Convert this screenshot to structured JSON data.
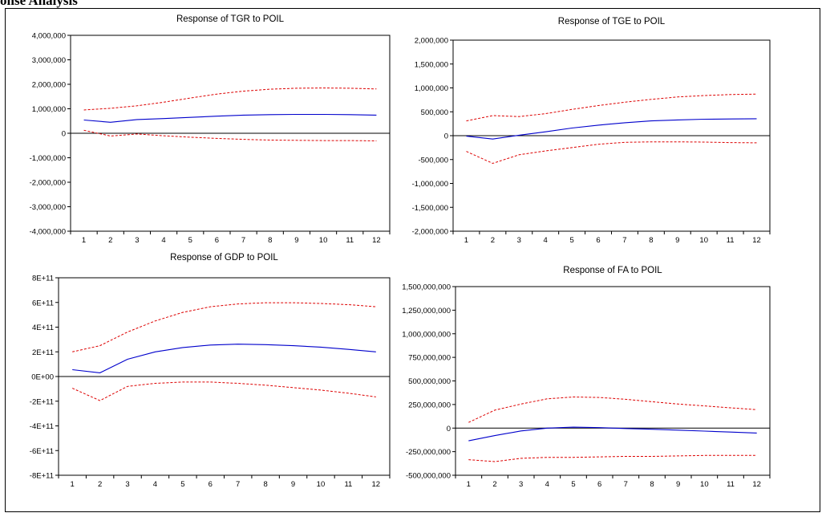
{
  "page": {
    "heading": "onse Analysis"
  },
  "colors": {
    "impulse": "#0000cc",
    "bands": "#dd0000",
    "axis": "#000000",
    "zero": "#000000"
  },
  "chart_data": [
    {
      "type": "line",
      "title": "Response of TGR to POIL",
      "x": [
        1,
        2,
        3,
        4,
        5,
        6,
        7,
        8,
        9,
        10,
        11,
        12
      ],
      "ylim": [
        -4000000,
        4000000
      ],
      "yticks": [
        -4000000,
        -3000000,
        -2000000,
        -1000000,
        0,
        1000000,
        2000000,
        3000000,
        4000000
      ],
      "ytick_labels": [
        "-4,000,000",
        "-3,000,000",
        "-2,000,000",
        "-1,000,000",
        "0",
        "1,000,000",
        "2,000,000",
        "3,000,000",
        "4,000,000"
      ],
      "xtick_labels": [
        "1",
        "2",
        "3",
        "4",
        "5",
        "6",
        "7",
        "8",
        "9",
        "10",
        "11",
        "12"
      ],
      "series": [
        {
          "role": "impulse",
          "values": [
            540000,
            450000,
            560000,
            600000,
            650000,
            700000,
            740000,
            760000,
            770000,
            770000,
            760000,
            740000
          ]
        },
        {
          "role": "upper",
          "values": [
            950000,
            1020000,
            1120000,
            1270000,
            1440000,
            1600000,
            1720000,
            1800000,
            1840000,
            1850000,
            1840000,
            1810000
          ]
        },
        {
          "role": "lower",
          "values": [
            120000,
            -110000,
            -30000,
            -100000,
            -160000,
            -210000,
            -250000,
            -280000,
            -290000,
            -300000,
            -300000,
            -310000
          ]
        }
      ]
    },
    {
      "type": "line",
      "title": "Response of TGE to POIL",
      "x": [
        1,
        2,
        3,
        4,
        5,
        6,
        7,
        8,
        9,
        10,
        11,
        12
      ],
      "ylim": [
        -2000000,
        2000000
      ],
      "yticks": [
        -2000000,
        -1500000,
        -1000000,
        -500000,
        0,
        500000,
        1000000,
        1500000,
        2000000
      ],
      "ytick_labels": [
        "-2,000,000",
        "-1,500,000",
        "-1,000,000",
        "-500,000",
        "0",
        "500,000",
        "1,000,000",
        "1,500,000",
        "2,000,000"
      ],
      "xtick_labels": [
        "1",
        "2",
        "3",
        "4",
        "5",
        "6",
        "7",
        "8",
        "9",
        "10",
        "11",
        "12"
      ],
      "series": [
        {
          "role": "impulse",
          "values": [
            -10000,
            -70000,
            10000,
            80000,
            160000,
            220000,
            270000,
            310000,
            330000,
            345000,
            350000,
            355000
          ]
        },
        {
          "role": "upper",
          "values": [
            310000,
            420000,
            400000,
            460000,
            550000,
            630000,
            700000,
            760000,
            810000,
            840000,
            860000,
            870000
          ]
        },
        {
          "role": "lower",
          "values": [
            -330000,
            -580000,
            -400000,
            -320000,
            -250000,
            -180000,
            -140000,
            -130000,
            -130000,
            -135000,
            -145000,
            -150000
          ]
        }
      ]
    },
    {
      "type": "line",
      "title": "Response of GDP to POIL",
      "x": [
        1,
        2,
        3,
        4,
        5,
        6,
        7,
        8,
        9,
        10,
        11,
        12
      ],
      "ylim": [
        -800000000000,
        800000000000
      ],
      "yticks": [
        -800000000000,
        -600000000000,
        -400000000000,
        -200000000000,
        0,
        200000000000,
        400000000000,
        600000000000,
        800000000000
      ],
      "ytick_labels": [
        "-8E+11",
        "-6E+11",
        "-4E+11",
        "-2E+11",
        "0E+00",
        "2E+11",
        "4E+11",
        "6E+11",
        "8E+11"
      ],
      "xtick_labels": [
        "1",
        "2",
        "3",
        "4",
        "5",
        "6",
        "7",
        "8",
        "9",
        "10",
        "11",
        "12"
      ],
      "series": [
        {
          "role": "impulse",
          "values": [
            55000000000,
            30000000000,
            140000000000,
            200000000000,
            235000000000,
            255000000000,
            262000000000,
            258000000000,
            250000000000,
            238000000000,
            220000000000,
            200000000000
          ]
        },
        {
          "role": "upper",
          "values": [
            200000000000,
            250000000000,
            360000000000,
            450000000000,
            520000000000,
            565000000000,
            588000000000,
            598000000000,
            598000000000,
            592000000000,
            582000000000,
            565000000000
          ]
        },
        {
          "role": "lower",
          "values": [
            -95000000000,
            -195000000000,
            -80000000000,
            -55000000000,
            -45000000000,
            -45000000000,
            -55000000000,
            -70000000000,
            -90000000000,
            -110000000000,
            -135000000000,
            -165000000000
          ]
        }
      ]
    },
    {
      "type": "line",
      "title": "Response of FA to POIL",
      "x": [
        1,
        2,
        3,
        4,
        5,
        6,
        7,
        8,
        9,
        10,
        11,
        12
      ],
      "ylim": [
        -500000000,
        1500000000
      ],
      "yticks": [
        -500000000,
        -250000000,
        0,
        250000000,
        500000000,
        750000000,
        1000000000,
        1250000000,
        1500000000
      ],
      "ytick_labels": [
        "-500,000,000",
        "-250,000,000",
        "0",
        "250,000,000",
        "500,000,000",
        "750,000,000",
        "1,000,000,000",
        "1,250,000,000",
        "1,500,000,000"
      ],
      "xtick_labels": [
        "1",
        "2",
        "3",
        "4",
        "5",
        "6",
        "7",
        "8",
        "9",
        "10",
        "11",
        "12"
      ],
      "series": [
        {
          "role": "impulse",
          "values": [
            -135000000,
            -80000000,
            -30000000,
            0,
            10000000,
            5000000,
            -5000000,
            -12000000,
            -22000000,
            -32000000,
            -42000000,
            -52000000
          ]
        },
        {
          "role": "upper",
          "values": [
            60000000,
            190000000,
            255000000,
            310000000,
            330000000,
            325000000,
            305000000,
            280000000,
            255000000,
            235000000,
            215000000,
            195000000
          ]
        },
        {
          "role": "lower",
          "values": [
            -335000000,
            -355000000,
            -320000000,
            -310000000,
            -310000000,
            -305000000,
            -300000000,
            -300000000,
            -295000000,
            -290000000,
            -290000000,
            -290000000
          ]
        }
      ]
    }
  ]
}
